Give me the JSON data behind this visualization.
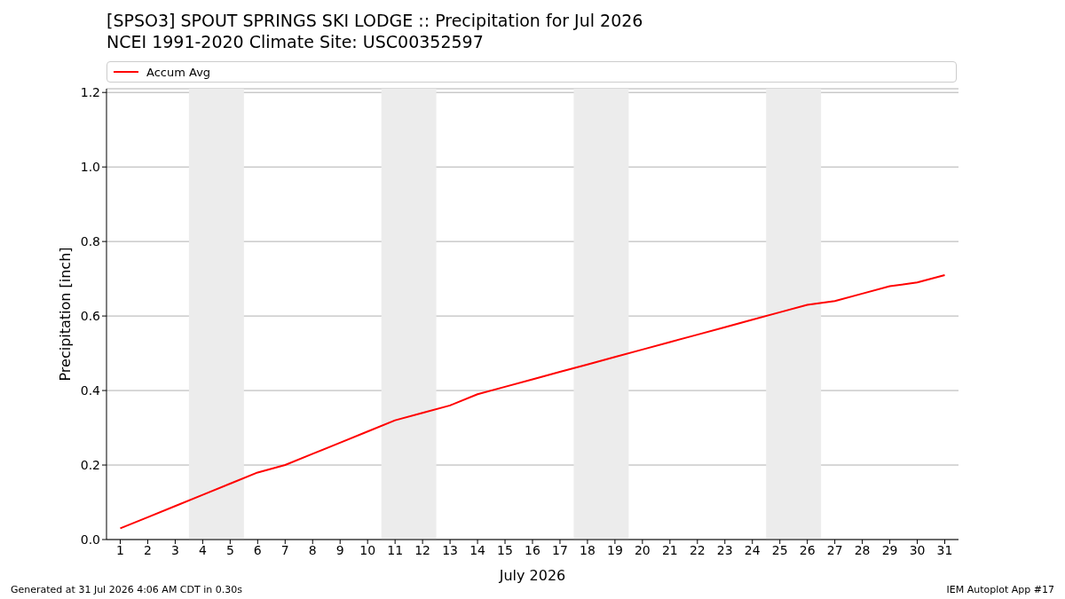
{
  "chart_data": {
    "type": "line",
    "title": "[SPSO3] SPOUT SPRINGS SKI LODGE :: Precipitation for Jul 2026",
    "subtitle": "NCEI 1991-2020 Climate Site: USC00352597",
    "xlabel": "July 2026",
    "ylabel": "Precipitation [inch]",
    "x": [
      1,
      2,
      3,
      4,
      5,
      6,
      7,
      8,
      9,
      10,
      11,
      12,
      13,
      14,
      15,
      16,
      17,
      18,
      19,
      20,
      21,
      22,
      23,
      24,
      25,
      26,
      27,
      28,
      29,
      30,
      31
    ],
    "series": [
      {
        "name": "Accum Avg",
        "color": "#ff0000",
        "values": [
          0.03,
          0.06,
          0.09,
          0.12,
          0.15,
          0.18,
          0.2,
          0.23,
          0.26,
          0.29,
          0.32,
          0.34,
          0.36,
          0.39,
          0.41,
          0.43,
          0.45,
          0.47,
          0.49,
          0.51,
          0.53,
          0.55,
          0.57,
          0.59,
          0.61,
          0.63,
          0.64,
          0.66,
          0.68,
          0.69,
          0.71
        ]
      }
    ],
    "xlim": [
      0.5,
      31.5
    ],
    "xticks": [
      1,
      2,
      3,
      4,
      5,
      6,
      7,
      8,
      9,
      10,
      11,
      12,
      13,
      14,
      15,
      16,
      17,
      18,
      19,
      20,
      21,
      22,
      23,
      24,
      25,
      26,
      27,
      28,
      29,
      30,
      31
    ],
    "ylim": [
      0,
      1.21
    ],
    "yticks": [
      {
        "value": 0,
        "label": "0.0"
      },
      0.2,
      0.4,
      0.6,
      0.8,
      {
        "value": 1,
        "label": "1.0"
      },
      1.2
    ],
    "bands": [
      {
        "axis": "x",
        "from": 3.5,
        "to": 5.5,
        "color": "#ececec"
      },
      {
        "axis": "x",
        "from": 10.5,
        "to": 12.5,
        "color": "#ececec"
      },
      {
        "axis": "x",
        "from": 17.5,
        "to": 19.5,
        "color": "#ececec"
      },
      {
        "axis": "x",
        "from": 24.5,
        "to": 26.5,
        "color": "#ececec"
      }
    ],
    "grid": "y",
    "legend": "top",
    "line_style": "solid",
    "annotations": [
      "Generated at 31 Jul 2026 4:06 AM CDT in 0.30s",
      "IEM Autoplot App #17"
    ]
  }
}
